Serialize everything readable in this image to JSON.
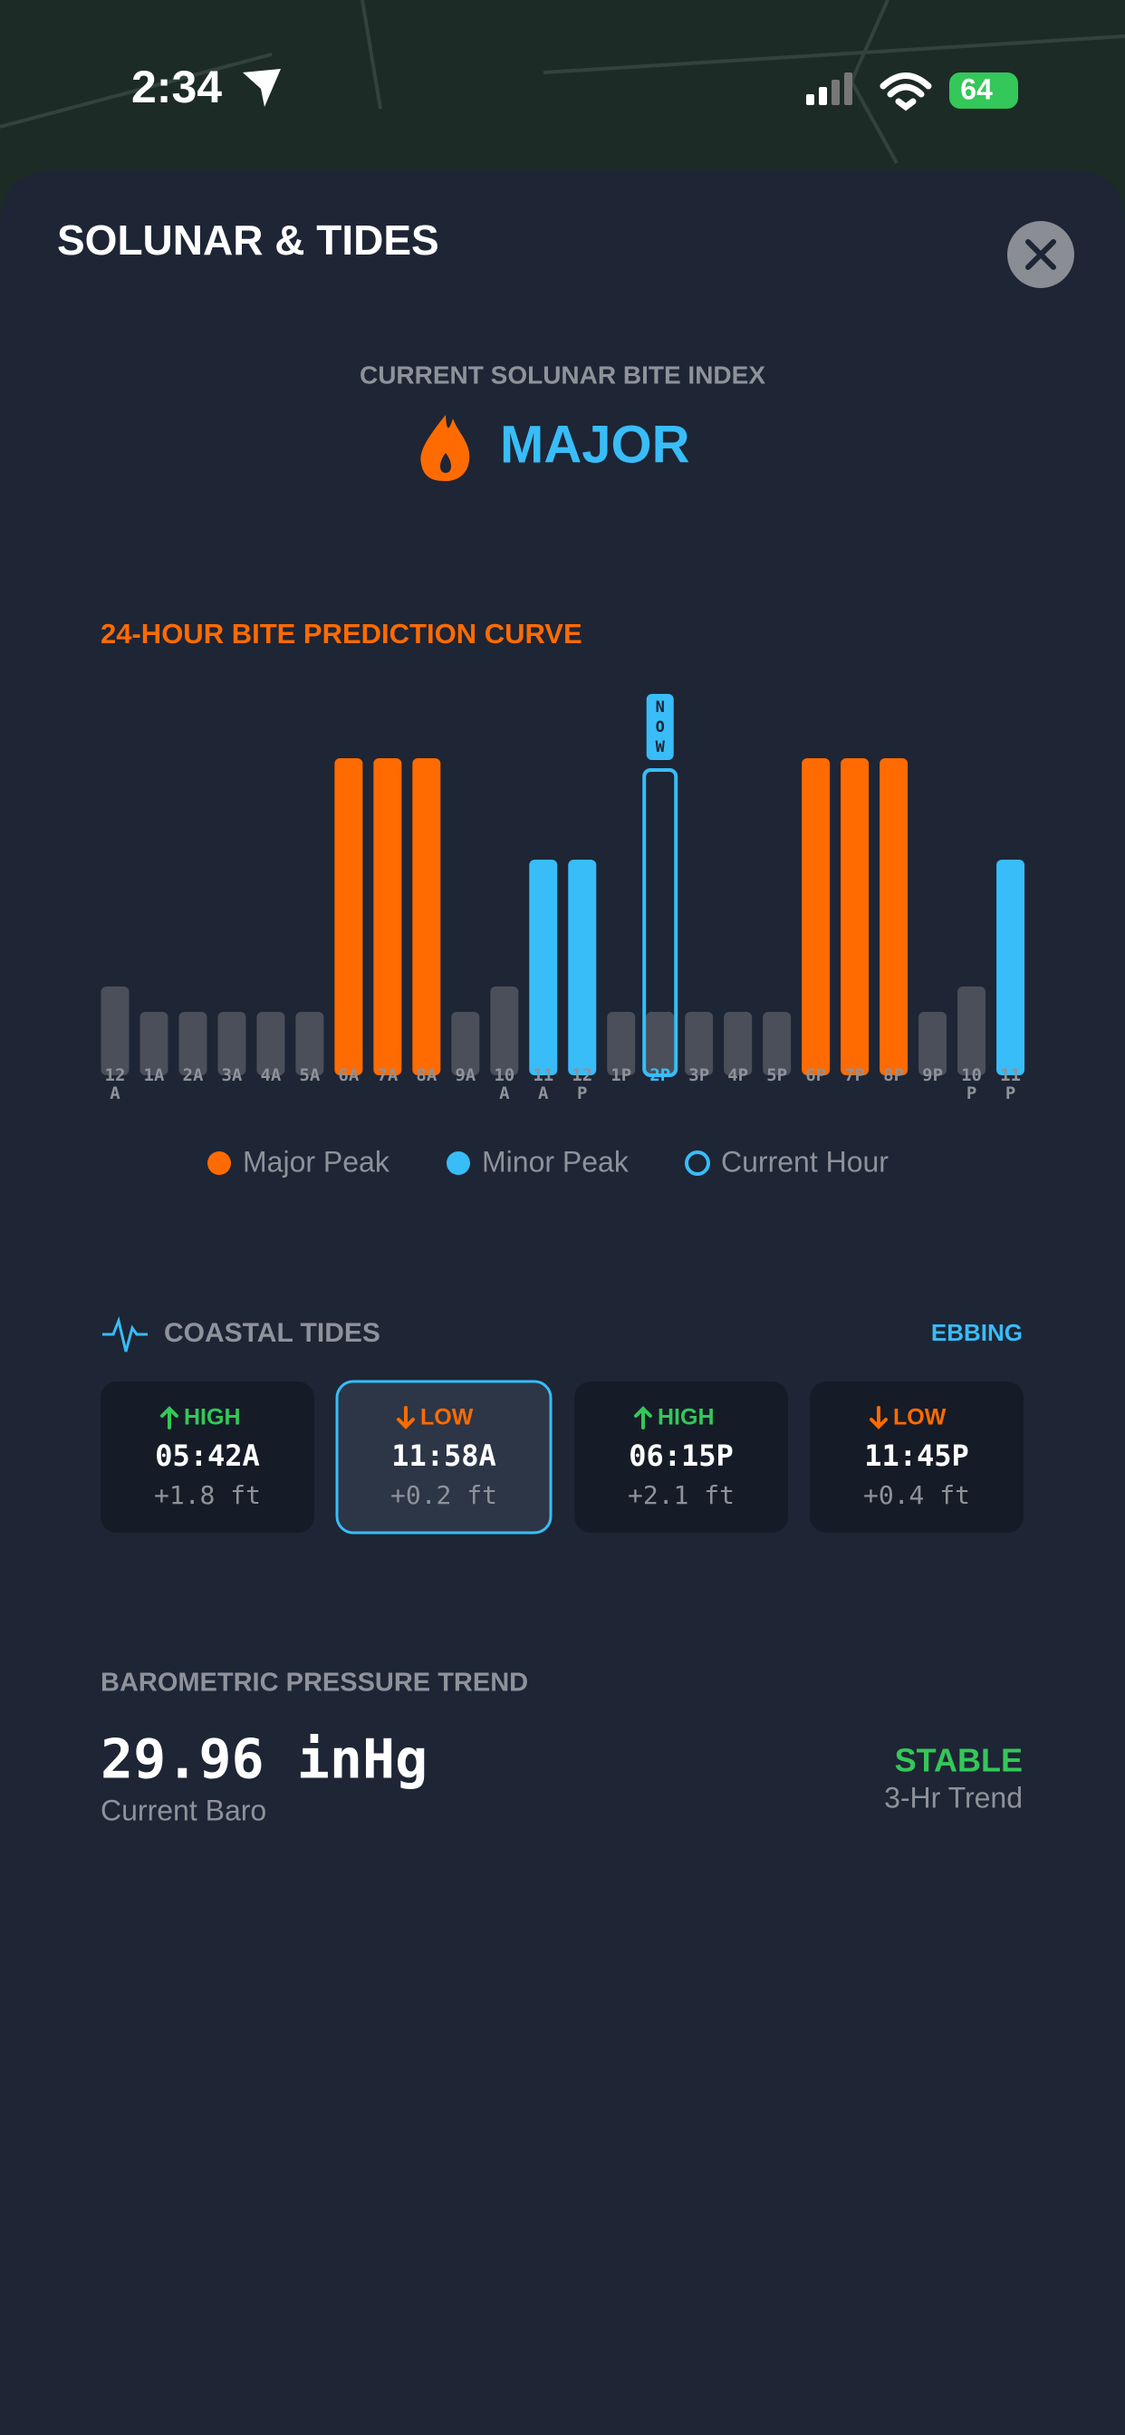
{
  "status_bar": {
    "time": "2:34",
    "battery": "64"
  },
  "sheet": {
    "title": "SOLUNAR & TIDES"
  },
  "bite_index": {
    "label": "CURRENT SOLUNAR BITE INDEX",
    "value": "MAJOR"
  },
  "chart_data": {
    "type": "bar",
    "title": "24-HOUR BITE PREDICTION CURVE",
    "categories": [
      "12 A",
      "1A",
      "2A",
      "3A",
      "4A",
      "5A",
      "6A",
      "7A",
      "8A",
      "9A",
      "10 A",
      "11 A",
      "12 P",
      "1P",
      "2P",
      "3P",
      "4P",
      "5P",
      "6P",
      "7P",
      "8P",
      "9P",
      "10 P",
      "11 P"
    ],
    "values": [
      28,
      20,
      20,
      20,
      20,
      20,
      100,
      100,
      100,
      20,
      28,
      68,
      68,
      20,
      20,
      20,
      20,
      20,
      100,
      100,
      100,
      20,
      28,
      68
    ],
    "colors": [
      "#4a4f5a",
      "#4a4f5a",
      "#4a4f5a",
      "#4a4f5a",
      "#4a4f5a",
      "#4a4f5a",
      "#ff6b00",
      "#ff6b00",
      "#ff6b00",
      "#4a4f5a",
      "#4a4f5a",
      "#38bdf8",
      "#38bdf8",
      "#4a4f5a",
      "#4a4f5a",
      "#4a4f5a",
      "#4a4f5a",
      "#4a4f5a",
      "#ff6b00",
      "#ff6b00",
      "#ff6b00",
      "#4a4f5a",
      "#4a4f5a",
      "#38bdf8"
    ],
    "ylim": [
      0,
      100
    ],
    "current": "2P",
    "now_label": "NOW",
    "legend": [
      {
        "name": "Major Peak",
        "color": "#ff6b00"
      },
      {
        "name": "Minor Peak",
        "color": "#38bdf8"
      },
      {
        "name": "Current Hour",
        "color": "#38bdf8",
        "outline": true
      }
    ]
  },
  "tides": {
    "title": "COASTAL TIDES",
    "status": "EBBING",
    "entries": [
      {
        "type": "HIGH",
        "time": "05:42A",
        "height": "+1.8 ft",
        "color": "#34c759",
        "arrow": "up"
      },
      {
        "type": "LOW",
        "time": "11:58A",
        "height": "+0.2 ft",
        "color": "#ff6b00",
        "arrow": "down",
        "active": true
      },
      {
        "type": "HIGH",
        "time": "06:15P",
        "height": "+2.1 ft",
        "color": "#34c759",
        "arrow": "up"
      },
      {
        "type": "LOW",
        "time": "11:45P",
        "height": "+0.4 ft",
        "color": "#ff6b00",
        "arrow": "down"
      }
    ]
  },
  "baro": {
    "title": "BAROMETRIC PRESSURE TREND",
    "value": "29.96 inHg",
    "caption": "Current Baro",
    "trend": "STABLE",
    "trend_caption": "3-Hr Trend"
  }
}
